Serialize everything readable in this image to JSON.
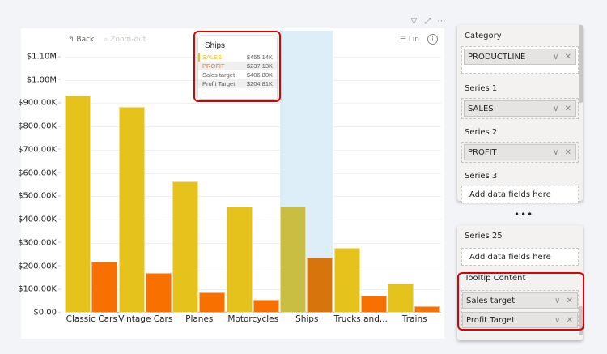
{
  "visual_header_icons": [
    {
      "name": "filter-icon",
      "glyph": "▽"
    },
    {
      "name": "focus-mode-icon",
      "glyph": "⤢"
    },
    {
      "name": "more-options-icon",
      "glyph": "⋯"
    }
  ],
  "chart_toolbar": {
    "back_icon": "↰",
    "back_label": "Back",
    "zoomout_icon": "⌕",
    "zoomout_label": "Zoom-out",
    "scale_icon": "☰",
    "scale_label": "Lin",
    "info_icon": "i"
  },
  "chart_data": {
    "type": "bar",
    "title": "",
    "xlabel": "",
    "ylabel": "",
    "categories": [
      "Classic Cars",
      "Vintage Cars",
      "Planes",
      "Motorcycles",
      "Ships",
      "Trucks and...",
      "Trains"
    ],
    "series": [
      {
        "name": "SALES",
        "color": "#e6c31c",
        "values": [
          933000,
          884000,
          564000,
          456000,
          455140,
          278000,
          125000
        ]
      },
      {
        "name": "PROFIT",
        "color": "#f77000",
        "values": [
          219000,
          171000,
          87000,
          56000,
          237130,
          73000,
          28000
        ]
      }
    ],
    "y_ticks": [
      "$0.00",
      "$100.00K",
      "$200.00K",
      "$300.00K",
      "$400.00K",
      "$500.00K",
      "$600.00K",
      "$700.00K",
      "$800.00K",
      "$900.00K",
      "$1.00M",
      "$1.10M"
    ],
    "ylim": [
      0,
      1100000
    ],
    "grid": true,
    "highlighted_category": "Ships"
  },
  "tooltip": {
    "title": "Ships",
    "rows": [
      {
        "label": "SALES",
        "value": "$455.14K",
        "color": "#e6c31c"
      },
      {
        "label": "PROFIT",
        "value": "$237.13K",
        "color": "#f77000"
      },
      {
        "label": "Sales target",
        "value": "$406.80K",
        "color": "#605e5c"
      },
      {
        "label": "Profit Target",
        "value": "$204.81K",
        "color": "#605e5c"
      }
    ]
  },
  "fields_panel_top": {
    "category_label": "Category",
    "category_field": "PRODUCTLINE",
    "series1_label": "Series 1",
    "series1_field": "SALES",
    "series2_label": "Series 2",
    "series2_field": "PROFIT",
    "series3_label": "Series 3",
    "series3_placeholder": "Add data fields here",
    "field_actions": "∨ ✕"
  },
  "ellipsis": "•••",
  "fields_panel_bottom": {
    "series25_label": "Series 25",
    "series25_placeholder": "Add data fields here",
    "tooltip_label": "Tooltip Content",
    "tooltip_fields": [
      "Sales target",
      "Profit Target"
    ],
    "field_actions": "∨ ✕"
  }
}
